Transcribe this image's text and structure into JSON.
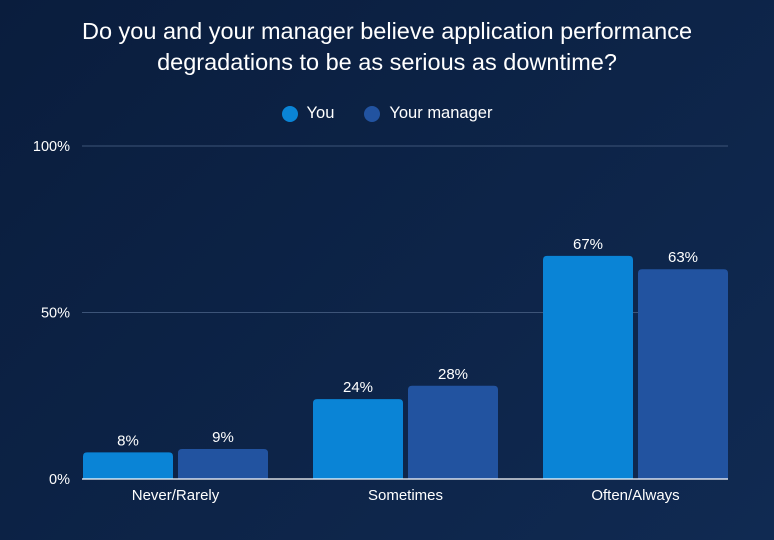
{
  "chart_data": {
    "type": "bar",
    "title": "Do you and your manager believe application performance degradations to be as serious as downtime?",
    "categories": [
      "Never/Rarely",
      "Sometimes",
      "Often/Always"
    ],
    "series": [
      {
        "name": "You",
        "values": [
          8,
          24,
          67
        ],
        "labels": [
          "8%",
          "24%",
          "67%"
        ],
        "color": "#0a84d6"
      },
      {
        "name": "Your manager",
        "values": [
          9,
          28,
          63
        ],
        "labels": [
          "9%",
          "28%",
          "63%"
        ],
        "color": "#2253a0"
      }
    ],
    "ylim": [
      0,
      100
    ],
    "yticks": [
      0,
      50,
      100
    ],
    "ytick_labels": [
      "0%",
      "50%",
      "100%"
    ],
    "grid": true,
    "legend": "top-center",
    "gridline_color": "#3d5478",
    "baseline_color": "#ffffff"
  }
}
